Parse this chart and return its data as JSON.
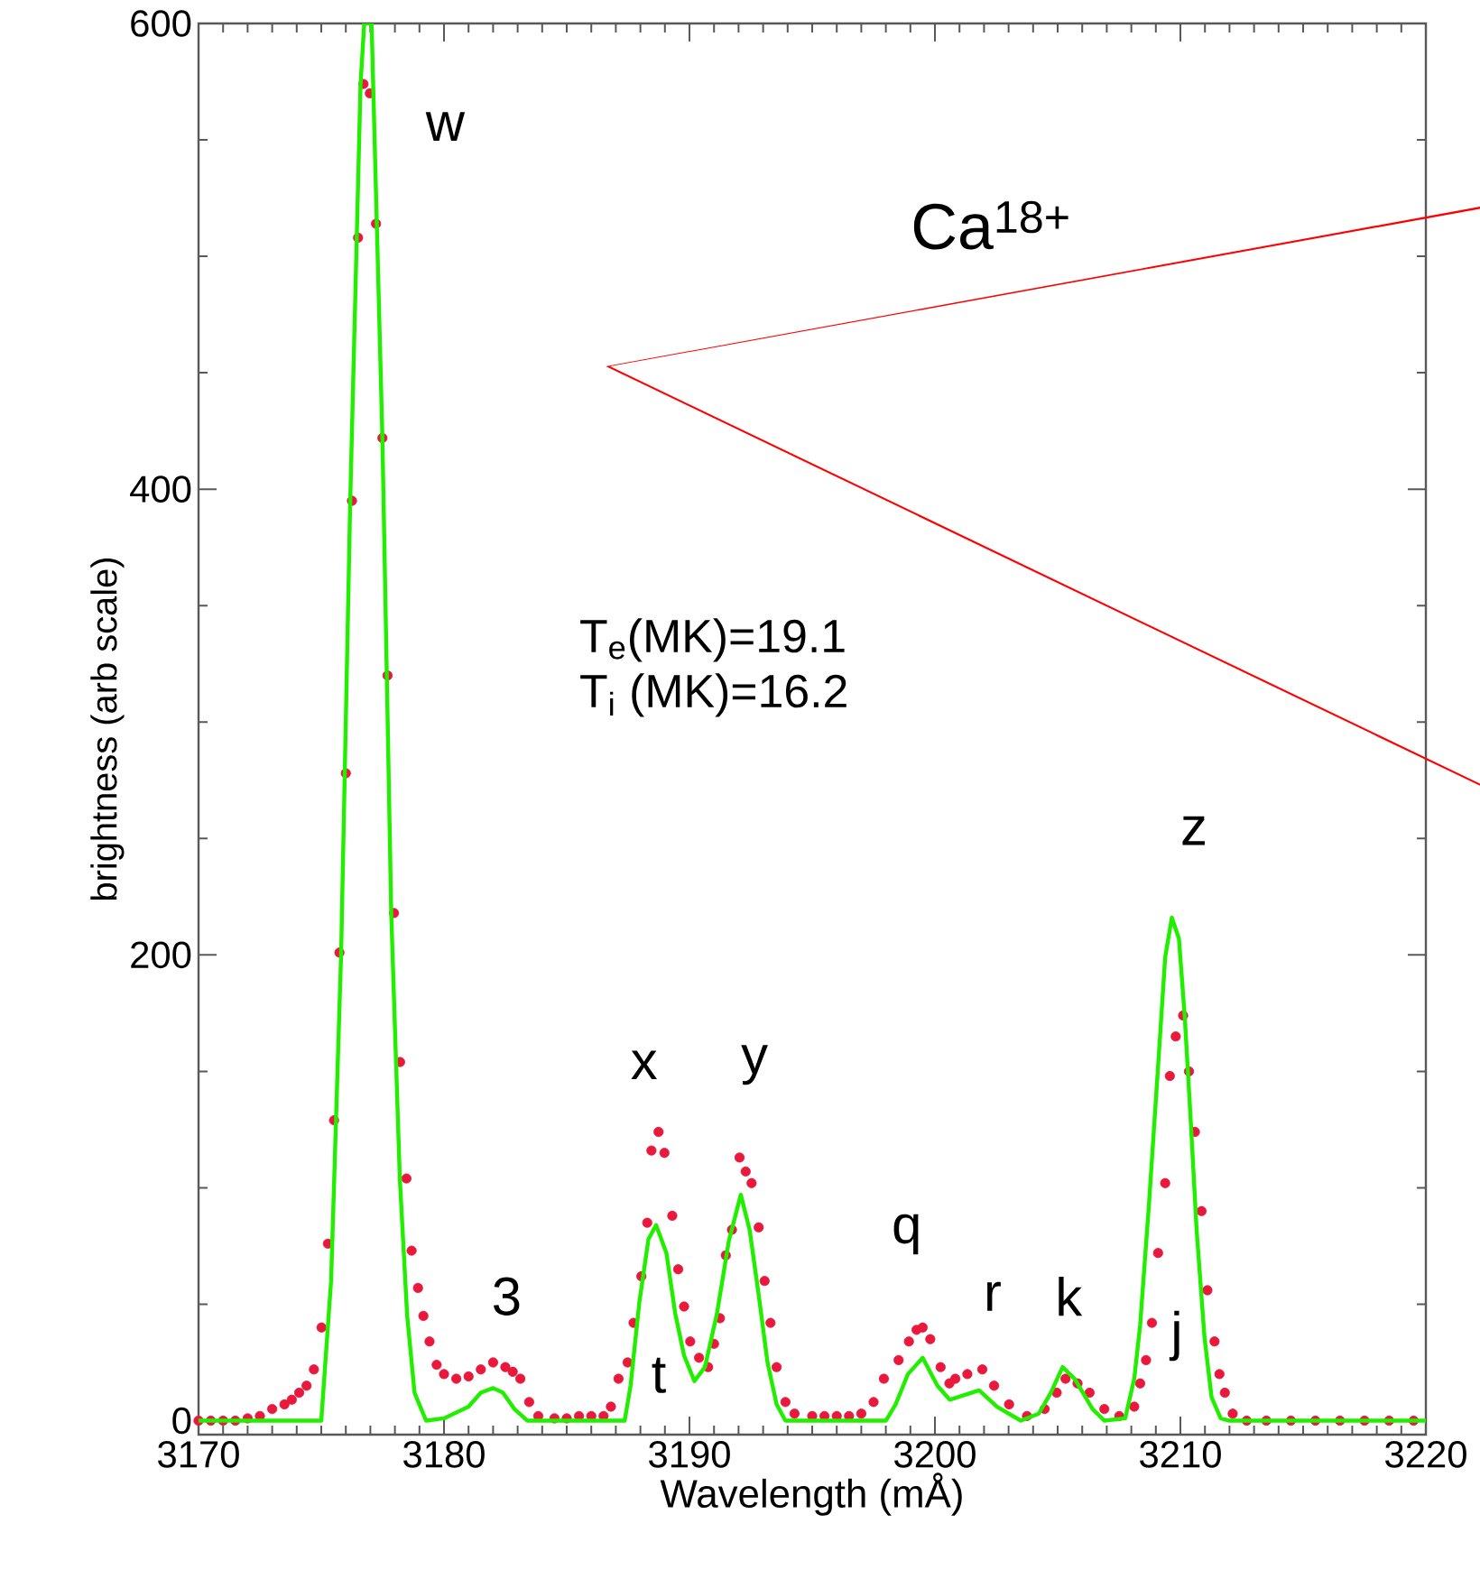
{
  "chart_data": {
    "type": "scatter",
    "xlabel": "Wavelength (mÅ)",
    "ylabel": "brightness (arb scale)",
    "xlim": [
      3170,
      3220
    ],
    "ylim": [
      -6,
      600
    ],
    "xticks": [
      3170,
      3180,
      3190,
      3200,
      3210,
      3220
    ],
    "yticks": [
      0,
      200,
      400,
      600
    ],
    "grid": false,
    "series": [
      {
        "type": "scatter",
        "color": "#e8193c",
        "marker": "circle",
        "x": [
          3170,
          3170.5,
          3171,
          3171.5,
          3172,
          3172.5,
          3173,
          3173.5,
          3173.8,
          3174.1,
          3174.4,
          3174.7,
          3175.01,
          3175.27,
          3175.52,
          3175.74,
          3176.0,
          3176.25,
          3176.5,
          3176.72,
          3176.98,
          3177.23,
          3177.49,
          3177.7,
          3177.96,
          3178.21,
          3178.47,
          3178.68,
          3178.94,
          3179.16,
          3179.41,
          3179.7,
          3180.0,
          3180.5,
          3181.0,
          3181.5,
          3182.0,
          3182.5,
          3182.8,
          3183.11,
          3183.47,
          3183.84,
          3184.5,
          3185.0,
          3185.5,
          3186.0,
          3186.5,
          3186.8,
          3187.11,
          3187.48,
          3187.72,
          3188.04,
          3188.28,
          3188.45,
          3188.74,
          3188.98,
          3189.3,
          3189.54,
          3189.78,
          3190.03,
          3190.39,
          3190.76,
          3191.0,
          3191.24,
          3191.48,
          3191.73,
          3192.04,
          3192.29,
          3192.53,
          3192.82,
          3193.06,
          3193.3,
          3193.55,
          3193.91,
          3194.28,
          3195.0,
          3195.5,
          3196.0,
          3196.5,
          3197.0,
          3197.5,
          3197.92,
          3198.52,
          3198.94,
          3199.25,
          3199.5,
          3199.81,
          3200.23,
          3200.59,
          3200.83,
          3201.32,
          3201.93,
          3202.41,
          3203.02,
          3203.75,
          3204.47,
          3204.96,
          3205.32,
          3205.81,
          3206.3,
          3206.9,
          3207.51,
          3208.12,
          3208.36,
          3208.6,
          3208.84,
          3209.09,
          3209.38,
          3209.57,
          3209.81,
          3210.11,
          3210.35,
          3210.59,
          3210.86,
          3211.1,
          3211.39,
          3211.59,
          3211.81,
          3212.13,
          3212.7,
          3213.5,
          3214.5,
          3215.5,
          3216.5,
          3217.5,
          3218.5,
          3219.5
        ],
        "values": [
          0,
          0,
          0,
          0,
          1,
          2,
          5,
          7,
          9,
          12,
          15,
          22,
          40,
          76,
          129,
          201,
          278,
          395,
          508,
          574,
          570,
          514,
          422,
          320,
          218,
          154,
          104,
          73,
          57,
          45,
          34,
          24,
          20,
          18,
          19,
          22,
          25,
          23,
          21,
          18,
          8,
          2,
          1,
          1,
          2,
          2,
          2,
          6,
          18,
          25,
          42,
          62,
          85,
          116,
          124,
          115,
          88,
          65,
          49,
          34,
          27,
          23,
          33,
          44,
          71,
          82,
          113,
          107,
          102,
          83,
          60,
          42,
          23,
          8,
          3,
          2,
          2,
          2,
          2,
          3,
          8,
          18,
          26,
          34,
          39,
          40,
          35,
          23,
          16,
          18,
          20,
          22,
          15,
          7,
          2,
          5,
          12,
          18,
          16,
          12,
          5,
          2,
          6,
          16,
          26,
          42,
          72,
          102,
          148,
          165,
          174,
          150,
          124,
          90,
          56,
          34,
          20,
          12,
          3,
          0,
          0,
          0,
          0,
          0,
          0,
          0,
          0
        ]
      },
      {
        "type": "line",
        "color": "#22ee00",
        "marker": "none",
        "line_style": "solid",
        "x": [
          3170,
          3175.0,
          3175.4,
          3175.81,
          3176.18,
          3176.6,
          3176.75,
          3177.05,
          3177.49,
          3177.85,
          3178.2,
          3178.5,
          3178.8,
          3179.27,
          3180.0,
          3181.0,
          3181.5,
          3182.0,
          3182.4,
          3182.87,
          3183.4,
          3187.36,
          3187.6,
          3187.96,
          3188.33,
          3188.64,
          3189.06,
          3189.42,
          3189.78,
          3190.2,
          3190.63,
          3191.12,
          3191.6,
          3192.09,
          3192.45,
          3192.82,
          3193.18,
          3193.55,
          3193.91,
          3198.0,
          3198.4,
          3198.9,
          3199.5,
          3200.1,
          3200.6,
          3201.2,
          3201.8,
          3202.53,
          3203.5,
          3204.23,
          3204.72,
          3205.2,
          3205.69,
          3206.42,
          3206.9,
          3207.75,
          3208.12,
          3208.36,
          3208.72,
          3209.09,
          3209.38,
          3209.65,
          3209.94,
          3210.18,
          3210.42,
          3210.66,
          3210.98,
          3211.27,
          3211.64,
          3212.0,
          3220
        ],
        "values": [
          0,
          0,
          60,
          201,
          395,
          574,
          600,
          600,
          422,
          218,
          104,
          45,
          12,
          0,
          1,
          6,
          12,
          14,
          12,
          5,
          0,
          0,
          15,
          51,
          78,
          84,
          72,
          46,
          28,
          17,
          23,
          46,
          77,
          97,
          82,
          54,
          25,
          7,
          0,
          0,
          7,
          20,
          27,
          15,
          9,
          11,
          13,
          6,
          0,
          3,
          12,
          23,
          18,
          5,
          0,
          1,
          18,
          41,
          93,
          152,
          199,
          216,
          207,
          173,
          129,
          82,
          36,
          10,
          1,
          0,
          0
        ]
      }
    ],
    "annotations": [
      "Ca$^{18+}$",
      "T$_{e}$(MK)=19.1",
      "T$_{i}$ (MK)=16.2",
      "w",
      "3",
      "x",
      "t",
      "y",
      "q",
      "r",
      "k",
      "j",
      "z"
    ]
  }
}
